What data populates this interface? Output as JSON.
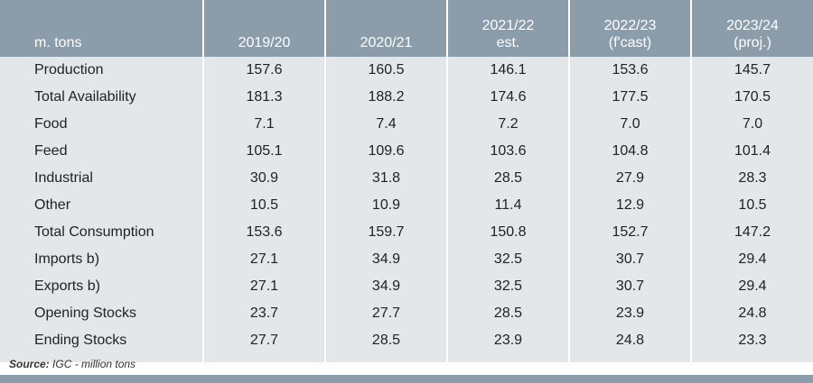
{
  "table": {
    "header": [
      [
        "m. tons"
      ],
      [
        "2019/20"
      ],
      [
        "2020/21"
      ],
      [
        "2021/22",
        "est."
      ],
      [
        "2022/23",
        "(f'cast)"
      ],
      [
        "2023/24",
        "(proj.)"
      ]
    ],
    "rows": [
      {
        "label": "Production",
        "values": [
          "157.6",
          "160.5",
          "146.1",
          "153.6",
          "145.7"
        ]
      },
      {
        "label": "Total Availability",
        "values": [
          "181.3",
          "188.2",
          "174.6",
          "177.5",
          "170.5"
        ]
      },
      {
        "label": "Food",
        "values": [
          "7.1",
          "7.4",
          "7.2",
          "7.0",
          "7.0"
        ]
      },
      {
        "label": "Feed",
        "values": [
          "105.1",
          "109.6",
          "103.6",
          "104.8",
          "101.4"
        ]
      },
      {
        "label": "Industrial",
        "values": [
          "30.9",
          "31.8",
          "28.5",
          "27.9",
          "28.3"
        ]
      },
      {
        "label": "Other",
        "values": [
          "10.5",
          "10.9",
          "11.4",
          "12.9",
          "10.5"
        ]
      },
      {
        "label": "Total Consumption",
        "values": [
          "153.6",
          "159.7",
          "150.8",
          "152.7",
          "147.2"
        ]
      },
      {
        "label": "Imports b)",
        "values": [
          "27.1",
          "34.9",
          "32.5",
          "30.7",
          "29.4"
        ]
      },
      {
        "label": "Exports b)",
        "values": [
          "27.1",
          "34.9",
          "32.5",
          "30.7",
          "29.4"
        ]
      },
      {
        "label": "Opening Stocks",
        "values": [
          "23.7",
          "27.7",
          "28.5",
          "23.9",
          "24.8"
        ]
      },
      {
        "label": "Ending Stocks",
        "values": [
          "27.7",
          "28.5",
          "23.9",
          "24.8",
          "23.3"
        ]
      }
    ]
  },
  "source": {
    "label": "Source:",
    "text": "IGC - million tons"
  }
}
